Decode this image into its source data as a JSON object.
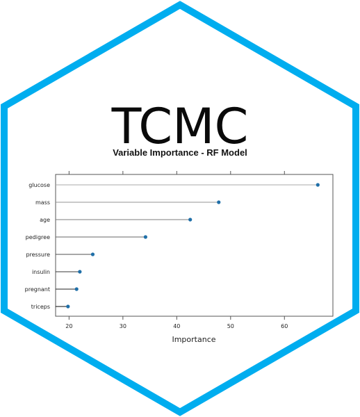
{
  "logo": {
    "title": "TCMC",
    "border_color": "#00ADEF"
  },
  "chart_data": {
    "type": "dot",
    "title": "Variable Importance - RF Model",
    "xlabel": "Importance",
    "ylabel": "",
    "xlim": [
      17.5,
      69
    ],
    "xticks": [
      20,
      30,
      40,
      50,
      60
    ],
    "grid": false,
    "dot_color": "#1F6FA8",
    "categories": [
      "glucose",
      "mass",
      "age",
      "pedigree",
      "pressure",
      "insulin",
      "pregnant",
      "triceps"
    ],
    "values": [
      66.2,
      47.8,
      42.5,
      34.2,
      24.4,
      22.0,
      21.4,
      19.8
    ]
  }
}
